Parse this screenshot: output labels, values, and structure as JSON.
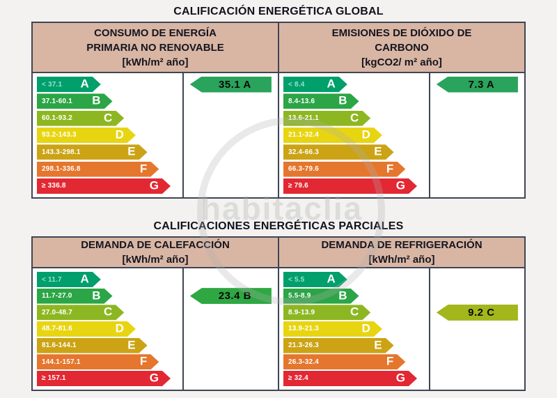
{
  "watermark_text": "habitaclia",
  "colors": {
    "header_bg": "#d9b6a4",
    "border": "#3e4554",
    "band_colors": {
      "A": "#009f6b",
      "B": "#2ba546",
      "C": "#8db722",
      "D": "#e8d511",
      "E": "#cba315",
      "F": "#e5762d",
      "G": "#e22833"
    }
  },
  "sections": [
    {
      "title": "CALIFICACIÓN ENERGÉTICA GLOBAL",
      "panels": [
        {
          "header_lines": [
            "CONSUMO DE ENERGÍA",
            "PRIMARIA NO RENOVABLE",
            "[kWh/m² año]"
          ],
          "bands": [
            {
              "letter": "A",
              "range": "< 37.1"
            },
            {
              "letter": "B",
              "range": "37.1-60.1"
            },
            {
              "letter": "C",
              "range": "60.1-93.2"
            },
            {
              "letter": "D",
              "range": "93.2-143.3"
            },
            {
              "letter": "E",
              "range": "143.3-298.1"
            },
            {
              "letter": "F",
              "range": "298.1-336.8"
            },
            {
              "letter": "G",
              "range": "≥ 336.8"
            }
          ],
          "rating": {
            "label": "35.1 A",
            "row": 0,
            "color": "#2aa35c"
          }
        },
        {
          "header_lines": [
            "EMISIONES DE DIÓXIDO DE",
            "CARBONO",
            "[kgCO2/ m² año]"
          ],
          "bands": [
            {
              "letter": "A",
              "range": "< 8.4"
            },
            {
              "letter": "B",
              "range": "8.4-13.6"
            },
            {
              "letter": "C",
              "range": "13.6-21.1"
            },
            {
              "letter": "D",
              "range": "21.1-32.4"
            },
            {
              "letter": "E",
              "range": "32.4-66.3"
            },
            {
              "letter": "F",
              "range": "66.3-79.6"
            },
            {
              "letter": "G",
              "range": "≥ 79.6"
            }
          ],
          "rating": {
            "label": "7.3 A",
            "row": 0,
            "color": "#2aa35c"
          }
        }
      ]
    },
    {
      "title": "CALIFICACIONES ENERGÉTICAS PARCIALES",
      "panels": [
        {
          "header_lines": [
            "DEMANDA DE CALEFACCIÓN",
            "[kWh/m² año]"
          ],
          "bands": [
            {
              "letter": "A",
              "range": "< 11.7"
            },
            {
              "letter": "B",
              "range": "11.7-27.0"
            },
            {
              "letter": "C",
              "range": "27.0-48.7"
            },
            {
              "letter": "D",
              "range": "48.7-81.6"
            },
            {
              "letter": "E",
              "range": "81.6-144.1"
            },
            {
              "letter": "F",
              "range": "144.1-157.1"
            },
            {
              "letter": "G",
              "range": "≥ 157.1"
            }
          ],
          "rating": {
            "label": "23.4 B",
            "row": 1,
            "color": "#2fa843"
          }
        },
        {
          "header_lines": [
            "DEMANDA DE REFRIGERACIÓN",
            "[kWh/m² año]"
          ],
          "bands": [
            {
              "letter": "A",
              "range": "< 5.5"
            },
            {
              "letter": "B",
              "range": "5.5-8.9"
            },
            {
              "letter": "C",
              "range": "8.9-13.9"
            },
            {
              "letter": "D",
              "range": "13.9-21.3"
            },
            {
              "letter": "E",
              "range": "21.3-26.3"
            },
            {
              "letter": "F",
              "range": "26.3-32.4"
            },
            {
              "letter": "G",
              "range": "≥ 32.4"
            }
          ],
          "rating": {
            "label": "9.2 C",
            "row": 2,
            "color": "#a3b61b"
          }
        }
      ]
    }
  ],
  "chart_data": [
    {
      "type": "bar",
      "title": "CONSUMO DE ENERGÍA PRIMARIA NO RENOVABLE [kWh/m² año]",
      "categories": [
        "A",
        "B",
        "C",
        "D",
        "E",
        "F",
        "G"
      ],
      "band_ranges": [
        "< 37.1",
        "37.1-60.1",
        "60.1-93.2",
        "93.2-143.3",
        "143.3-298.1",
        "298.1-336.8",
        "≥ 336.8"
      ],
      "rating": {
        "value": 35.1,
        "letter": "A"
      }
    },
    {
      "type": "bar",
      "title": "EMISIONES DE DIÓXIDO DE CARBONO [kgCO2/ m² año]",
      "categories": [
        "A",
        "B",
        "C",
        "D",
        "E",
        "F",
        "G"
      ],
      "band_ranges": [
        "< 8.4",
        "8.4-13.6",
        "13.6-21.1",
        "21.1-32.4",
        "32.4-66.3",
        "66.3-79.6",
        "≥ 79.6"
      ],
      "rating": {
        "value": 7.3,
        "letter": "A"
      }
    },
    {
      "type": "bar",
      "title": "DEMANDA DE CALEFACCIÓN [kWh/m² año]",
      "categories": [
        "A",
        "B",
        "C",
        "D",
        "E",
        "F",
        "G"
      ],
      "band_ranges": [
        "< 11.7",
        "11.7-27.0",
        "27.0-48.7",
        "48.7-81.6",
        "81.6-144.1",
        "144.1-157.1",
        "≥ 157.1"
      ],
      "rating": {
        "value": 23.4,
        "letter": "B"
      }
    },
    {
      "type": "bar",
      "title": "DEMANDA DE REFRIGERACIÓN [kWh/m² año]",
      "categories": [
        "A",
        "B",
        "C",
        "D",
        "E",
        "F",
        "G"
      ],
      "band_ranges": [
        "< 5.5",
        "5.5-8.9",
        "8.9-13.9",
        "13.9-21.3",
        "21.3-26.3",
        "26.3-32.4",
        "≥ 32.4"
      ],
      "rating": {
        "value": 9.2,
        "letter": "C"
      }
    }
  ]
}
